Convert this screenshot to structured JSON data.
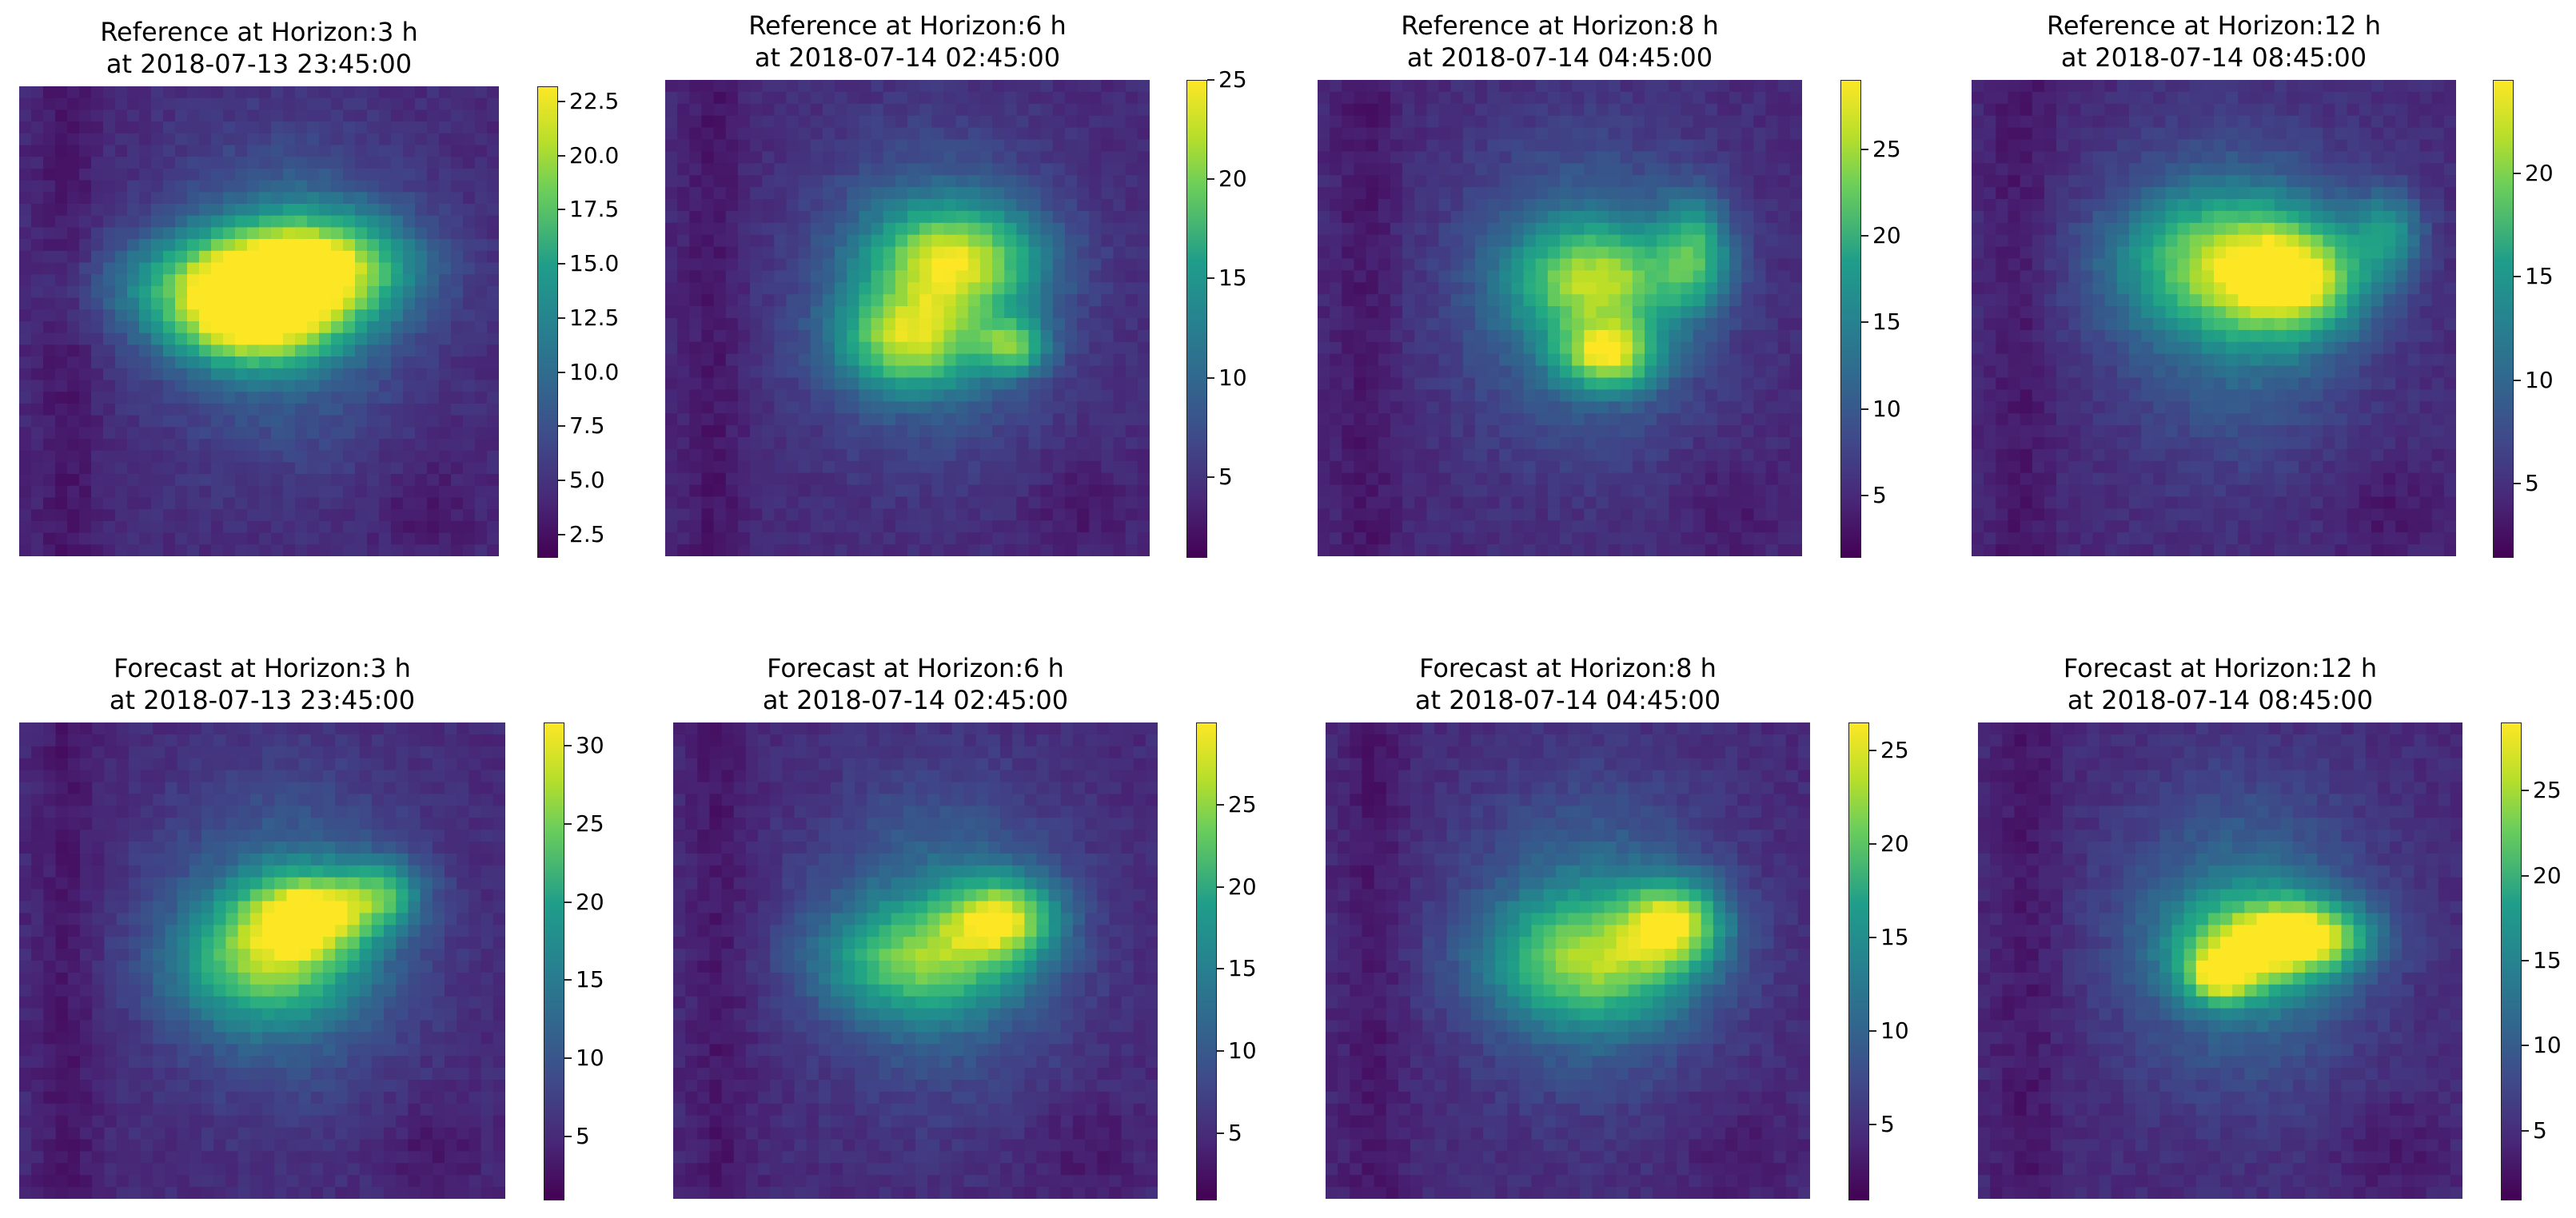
{
  "chart_data": [
    {
      "type": "heatmap",
      "title": "Reference at Horizon:3 h\n at 2018-07-13 23:45:00",
      "title_lines": [
        "Reference at Horizon:3 h",
        "at 2018-07-13 23:45:00"
      ],
      "colormap": "viridis",
      "colorbar": {
        "range": [
          1.5,
          23.2
        ],
        "ticks": [
          "2.5",
          "5.0",
          "7.5",
          "10.0",
          "12.5",
          "15.0",
          "17.5",
          "20.0",
          "22.5"
        ]
      },
      "hotspots": [
        [
          0.45,
          0.42,
          0.16,
          0.07,
          1.0
        ],
        [
          0.62,
          0.38,
          0.14,
          0.08,
          0.95
        ],
        [
          0.48,
          0.52,
          0.12,
          0.06,
          0.85
        ]
      ]
    },
    {
      "type": "heatmap",
      "title": "Reference at Horizon:6 h\n at 2018-07-14 02:45:00",
      "title_lines": [
        "Reference at Horizon:6 h",
        "at 2018-07-14 02:45:00"
      ],
      "colormap": "viridis",
      "colorbar": {
        "range": [
          1.0,
          25.0
        ],
        "ticks": [
          "5",
          "10",
          "15",
          "20",
          "25"
        ]
      },
      "hotspots": [
        [
          0.6,
          0.38,
          0.12,
          0.08,
          1.0
        ],
        [
          0.5,
          0.55,
          0.1,
          0.07,
          0.9
        ],
        [
          0.72,
          0.56,
          0.05,
          0.04,
          0.8
        ]
      ]
    },
    {
      "type": "heatmap",
      "title": "Reference at Horizon:8 h\n at 2018-07-14 04:45:00",
      "title_lines": [
        "Reference at Horizon:8 h",
        "at 2018-07-14 04:45:00"
      ],
      "colormap": "viridis",
      "colorbar": {
        "range": [
          1.5,
          29.0
        ],
        "ticks": [
          "5",
          "10",
          "15",
          "20",
          "25"
        ]
      },
      "hotspots": [
        [
          0.58,
          0.42,
          0.12,
          0.08,
          0.85
        ],
        [
          0.6,
          0.58,
          0.07,
          0.05,
          1.0
        ],
        [
          0.78,
          0.36,
          0.05,
          0.08,
          0.7
        ]
      ]
    },
    {
      "type": "heatmap",
      "title": "Reference at Horizon:12 h\n at 2018-07-14 08:45:00",
      "title_lines": [
        "Reference at Horizon:12 h",
        "at 2018-07-14 08:45:00"
      ],
      "colormap": "viridis",
      "colorbar": {
        "range": [
          1.5,
          24.5
        ],
        "ticks": [
          "5",
          "10",
          "15",
          "20"
        ]
      },
      "hotspots": [
        [
          0.67,
          0.42,
          0.1,
          0.08,
          1.0
        ],
        [
          0.5,
          0.38,
          0.15,
          0.1,
          0.75
        ],
        [
          0.86,
          0.32,
          0.05,
          0.06,
          0.55
        ]
      ]
    },
    {
      "type": "heatmap",
      "title": "Forecast at Horizon:3 h\n at 2018-07-13 23:45:00",
      "title_lines": [
        "Forecast at Horizon:3 h",
        "at 2018-07-13 23:45:00"
      ],
      "colormap": "viridis",
      "colorbar": {
        "range": [
          1.0,
          31.5
        ],
        "ticks": [
          "5",
          "10",
          "15",
          "20",
          "25",
          "30"
        ]
      },
      "hotspots": [
        [
          0.6,
          0.4,
          0.09,
          0.06,
          1.0
        ],
        [
          0.5,
          0.5,
          0.13,
          0.09,
          0.75
        ],
        [
          0.75,
          0.36,
          0.06,
          0.05,
          0.6
        ]
      ]
    },
    {
      "type": "heatmap",
      "title": "Forecast at Horizon:6 h\n at 2018-07-14 02:45:00",
      "title_lines": [
        "Forecast at Horizon:6 h",
        "at 2018-07-14 02:45:00"
      ],
      "colormap": "viridis",
      "colorbar": {
        "range": [
          1.0,
          30.0
        ],
        "ticks": [
          "5",
          "10",
          "15",
          "20",
          "25"
        ]
      },
      "hotspots": [
        [
          0.68,
          0.41,
          0.08,
          0.06,
          1.0
        ],
        [
          0.5,
          0.5,
          0.14,
          0.08,
          0.72
        ]
      ]
    },
    {
      "type": "heatmap",
      "title": "Forecast at Horizon:8 h\n at 2018-07-14 04:45:00",
      "title_lines": [
        "Forecast at Horizon:8 h",
        "at 2018-07-14 04:45:00"
      ],
      "colormap": "viridis",
      "colorbar": {
        "range": [
          1.0,
          26.5
        ],
        "ticks": [
          "5",
          "10",
          "15",
          "20",
          "25"
        ]
      },
      "hotspots": [
        [
          0.72,
          0.42,
          0.07,
          0.06,
          1.0
        ],
        [
          0.55,
          0.5,
          0.15,
          0.09,
          0.8
        ]
      ]
    },
    {
      "type": "heatmap",
      "title": "Forecast at Horizon:12 h\n at 2018-07-14 08:45:00",
      "title_lines": [
        "Forecast at Horizon:12 h",
        "at 2018-07-14 08:45:00"
      ],
      "colormap": "viridis",
      "colorbar": {
        "range": [
          1.0,
          29.0
        ],
        "ticks": [
          "5",
          "10",
          "15",
          "20",
          "25"
        ]
      },
      "hotspots": [
        [
          0.68,
          0.45,
          0.09,
          0.05,
          1.0
        ],
        [
          0.5,
          0.53,
          0.05,
          0.04,
          0.85
        ],
        [
          0.56,
          0.47,
          0.12,
          0.08,
          0.7
        ]
      ]
    }
  ]
}
